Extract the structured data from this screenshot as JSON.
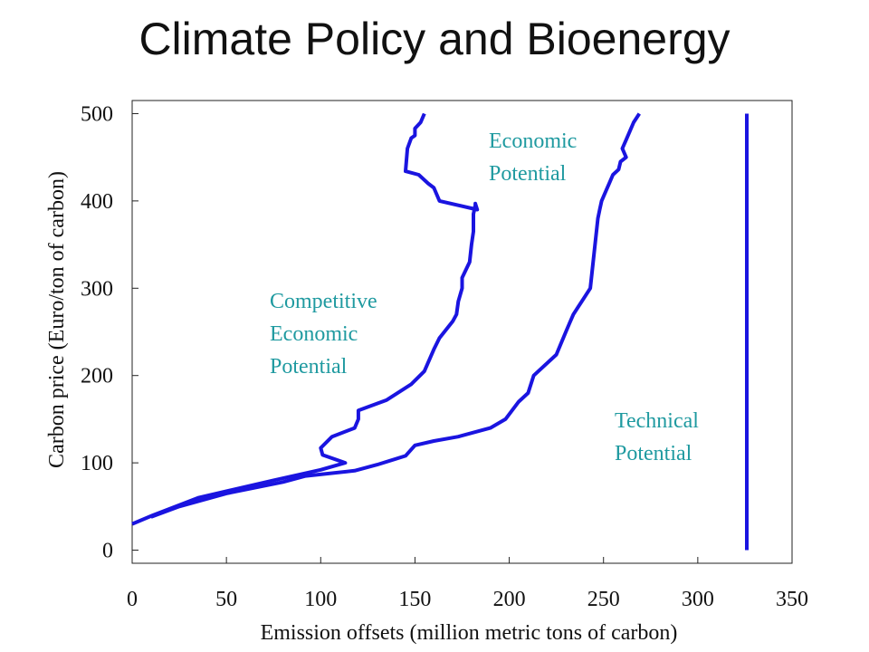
{
  "chart_data": {
    "type": "line",
    "title": "Climate Policy and Bioenergy",
    "xlabel": "Emission offsets (million metric tons of carbon)",
    "ylabel": "Carbon price (Euro/ton of carbon)",
    "xlim": [
      0,
      350
    ],
    "ylim": [
      -15,
      515
    ],
    "xticks": [
      "0",
      "50",
      "100",
      "150",
      "200",
      "250",
      "300",
      "350"
    ],
    "yticks": [
      "0",
      "100",
      "200",
      "300",
      "400",
      "500"
    ],
    "line_color": "#1a14e0",
    "annotation_color": "#1f9aa0",
    "grid": false,
    "legend": "none",
    "series": [
      {
        "label_lines": [
          "Competitive",
          "Economic",
          "Potential"
        ],
        "x": [
          0,
          11,
          35,
          75,
          100,
          113,
          101,
          100,
          106,
          118,
          120,
          120,
          135,
          148,
          155,
          158,
          160,
          163,
          170,
          172,
          173,
          175,
          175,
          179,
          180,
          181,
          181,
          182,
          182,
          183,
          163,
          160,
          157,
          152,
          145,
          146,
          148,
          150,
          150,
          153,
          155
        ],
        "y": [
          30,
          40,
          60,
          80,
          92,
          100,
          109,
          117,
          130,
          140,
          150,
          160,
          172,
          190,
          205,
          220,
          230,
          243,
          262,
          270,
          285,
          300,
          312,
          330,
          350,
          365,
          385,
          395,
          397,
          390,
          400,
          415,
          420,
          430,
          434,
          460,
          472,
          475,
          483,
          490,
          500
        ]
      },
      {
        "label_lines": [
          "Economic",
          "Potential"
        ],
        "x": [
          10,
          25,
          50,
          80,
          92,
          118,
          130,
          145,
          150,
          160,
          173,
          190,
          198,
          205,
          210,
          213,
          225,
          230,
          232,
          234,
          240,
          243,
          244,
          245,
          246,
          247,
          248,
          249,
          251,
          253,
          255,
          258,
          259,
          262,
          260,
          262,
          264,
          266,
          269
        ],
        "y": [
          38,
          50,
          65,
          78,
          85,
          91,
          98,
          108,
          120,
          125,
          130,
          140,
          150,
          170,
          180,
          200,
          224,
          250,
          260,
          270,
          290,
          300,
          320,
          340,
          360,
          380,
          390,
          400,
          410,
          420,
          430,
          436,
          445,
          450,
          460,
          470,
          480,
          490,
          500
        ]
      },
      {
        "label_lines": [
          "Technical",
          "Potential"
        ],
        "x": [
          326,
          326
        ],
        "y": [
          0,
          500
        ]
      }
    ]
  }
}
